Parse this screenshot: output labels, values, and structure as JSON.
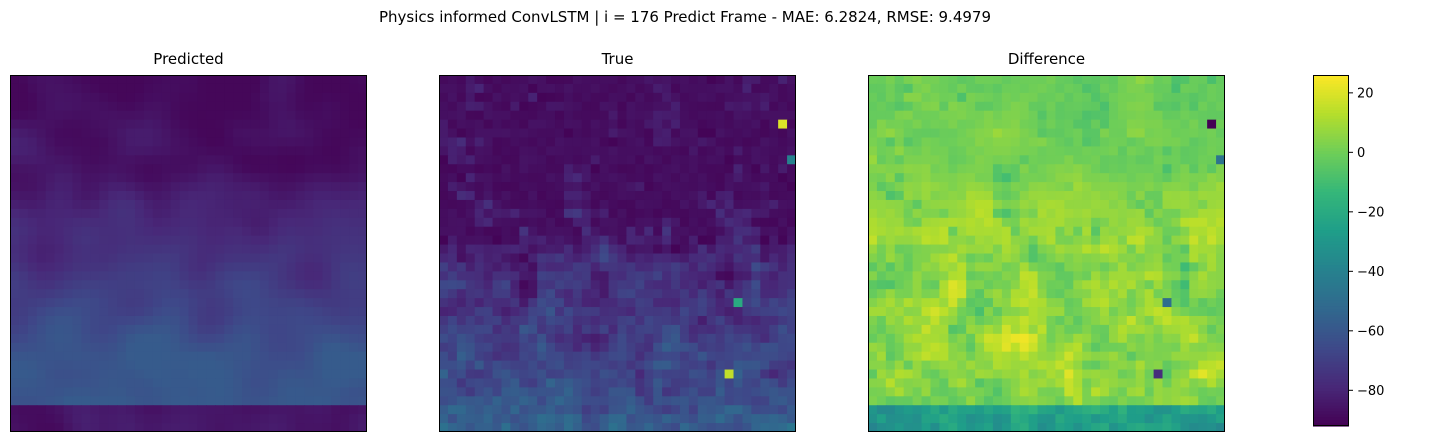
{
  "figure": {
    "suptitle": "Physics informed ConvLSTM | i = 176 Predict Frame - MAE: 6.2824, RMSE: 9.4979"
  },
  "chart_data": [
    {
      "type": "heatmap",
      "title": "Predicted",
      "grid_size": [
        40,
        40
      ],
      "colormap": "viridis",
      "vlim": [
        -92,
        26
      ],
      "axes_ticks": "none",
      "value_field_description_regions": [
        {
          "region": "top",
          "approx_value": -85
        },
        {
          "region": "upper-middle",
          "approx_value": -78
        },
        {
          "region": "lower-middle",
          "approx_value": -65
        },
        {
          "region": "bottom-edge",
          "approx_value": -85
        }
      ]
    },
    {
      "type": "heatmap",
      "title": "True",
      "grid_size": [
        40,
        40
      ],
      "colormap": "viridis",
      "vlim": [
        -92,
        26
      ],
      "axes_ticks": "none",
      "value_field_description_regions": [
        {
          "region": "top",
          "approx_value": -88
        },
        {
          "region": "middle",
          "approx_value": -75
        },
        {
          "region": "bottom",
          "approx_value": -55
        },
        {
          "region": "hotspot",
          "approx_value": 15
        }
      ]
    },
    {
      "type": "heatmap",
      "title": "Difference",
      "grid_size": [
        40,
        40
      ],
      "colormap": "viridis",
      "vlim": [
        -92,
        26
      ],
      "axes_ticks": "none",
      "value_field_description_regions": [
        {
          "region": "top",
          "approx_value": 2
        },
        {
          "region": "middle",
          "approx_value": 12
        },
        {
          "region": "bottom",
          "approx_value": -10
        }
      ]
    }
  ],
  "colorbar": {
    "vmin": -92,
    "vmax": 26,
    "ticks": [
      20,
      0,
      -20,
      -40,
      -60,
      -80
    ],
    "tick_labels": [
      "20",
      "0",
      "−20",
      "−40",
      "−60",
      "−80"
    ],
    "colormap": "viridis"
  },
  "colors": {
    "viridis_stops": [
      "#440154",
      "#482878",
      "#3e4989",
      "#31688e",
      "#26828e",
      "#1f9e89",
      "#35b779",
      "#6ece58",
      "#b5de2b",
      "#fde725"
    ]
  }
}
